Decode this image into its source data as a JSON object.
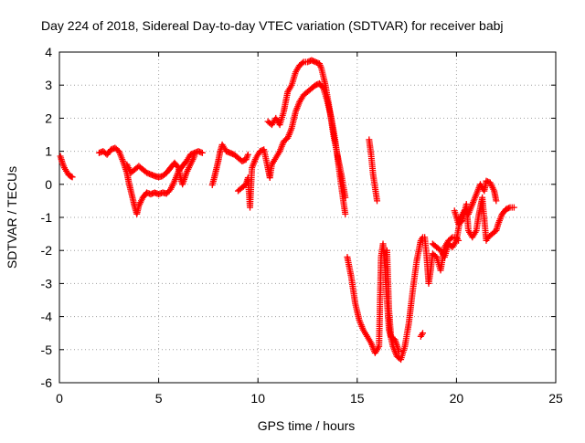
{
  "chart_data": {
    "type": "scatter",
    "title": "Day 224 of 2018, Sidereal Day-to-day VTEC variation (SDTVAR) for receiver babj",
    "xlabel": "GPS time / hours",
    "ylabel": "SDTVAR / TECUs",
    "xlim": [
      0,
      25
    ],
    "ylim": [
      -6,
      4
    ],
    "xticks": [
      "0",
      "5",
      "10",
      "15",
      "20",
      "25"
    ],
    "yticks": [
      "4",
      "3",
      "2",
      "1",
      "0",
      "-1",
      "-2",
      "-3",
      "-4",
      "-5",
      "-6"
    ],
    "grid": true,
    "marker": "plus",
    "color": "#ff0000",
    "series": [
      {
        "name": "SDTVAR",
        "segments": [
          [
            [
              0.05,
              0.85
            ],
            [
              0.15,
              0.65
            ],
            [
              0.25,
              0.5
            ],
            [
              0.35,
              0.4
            ],
            [
              0.45,
              0.3
            ],
            [
              0.55,
              0.25
            ],
            [
              0.65,
              0.22
            ]
          ],
          [
            [
              2.0,
              0.95
            ],
            [
              2.2,
              1.0
            ],
            [
              2.4,
              0.9
            ],
            [
              2.6,
              1.05
            ],
            [
              2.8,
              1.1
            ],
            [
              3.0,
              1.0
            ],
            [
              3.2,
              0.7
            ],
            [
              3.4,
              0.35
            ],
            [
              3.5,
              0.05
            ],
            [
              3.6,
              -0.2
            ],
            [
              3.7,
              -0.45
            ],
            [
              3.8,
              -0.7
            ],
            [
              3.9,
              -0.9
            ],
            [
              4.0,
              -0.65
            ],
            [
              4.2,
              -0.4
            ],
            [
              4.4,
              -0.25
            ],
            [
              4.6,
              -0.3
            ],
            [
              4.8,
              -0.25
            ],
            [
              5.0,
              -0.3
            ],
            [
              5.2,
              -0.25
            ],
            [
              5.4,
              -0.28
            ],
            [
              5.6,
              -0.15
            ],
            [
              5.8,
              0.1
            ],
            [
              6.0,
              0.4
            ],
            [
              6.2,
              0.55
            ],
            [
              6.4,
              0.7
            ],
            [
              6.6,
              0.9
            ],
            [
              6.8,
              0.95
            ],
            [
              7.0,
              1.0
            ],
            [
              7.2,
              0.95
            ]
          ],
          [
            [
              3.4,
              0.6
            ],
            [
              3.6,
              0.35
            ],
            [
              3.8,
              0.45
            ],
            [
              4.0,
              0.55
            ],
            [
              4.2,
              0.45
            ],
            [
              4.4,
              0.35
            ],
            [
              4.6,
              0.3
            ],
            [
              4.8,
              0.25
            ],
            [
              5.0,
              0.22
            ],
            [
              5.2,
              0.25
            ],
            [
              5.4,
              0.35
            ],
            [
              5.6,
              0.5
            ],
            [
              5.8,
              0.65
            ],
            [
              6.0,
              0.5
            ],
            [
              6.1,
              0.2
            ],
            [
              6.2,
              0.0
            ],
            [
              6.4,
              0.35
            ],
            [
              6.6,
              0.6
            ],
            [
              6.8,
              0.85
            ]
          ],
          [
            [
              7.7,
              -0.02
            ],
            [
              7.8,
              0.2
            ],
            [
              7.9,
              0.45
            ],
            [
              8.0,
              0.7
            ],
            [
              8.1,
              1.0
            ],
            [
              8.2,
              1.2
            ],
            [
              8.4,
              1.0
            ],
            [
              8.6,
              0.95
            ],
            [
              8.8,
              0.9
            ],
            [
              9.0,
              0.8
            ],
            [
              9.2,
              0.7
            ],
            [
              9.4,
              0.75
            ],
            [
              9.5,
              0.9
            ]
          ],
          [
            [
              9.0,
              -0.2
            ],
            [
              9.2,
              -0.1
            ],
            [
              9.4,
              0.0
            ],
            [
              9.5,
              0.2
            ],
            [
              9.6,
              -0.7
            ],
            [
              9.7,
              0.5
            ],
            [
              9.9,
              0.8
            ],
            [
              10.1,
              1.0
            ],
            [
              10.3,
              1.05
            ],
            [
              10.5,
              0.5
            ],
            [
              10.6,
              0.2
            ],
            [
              10.7,
              0.6
            ],
            [
              10.9,
              0.8
            ],
            [
              11.1,
              1.0
            ],
            [
              11.3,
              1.3
            ],
            [
              11.5,
              1.4
            ],
            [
              11.7,
              1.7
            ],
            [
              11.9,
              2.2
            ],
            [
              12.1,
              2.5
            ],
            [
              12.3,
              2.7
            ],
            [
              12.5,
              2.8
            ],
            [
              12.7,
              2.9
            ],
            [
              12.9,
              3.0
            ],
            [
              13.1,
              3.05
            ],
            [
              13.3,
              2.9
            ],
            [
              13.5,
              2.5
            ],
            [
              13.7,
              2.0
            ],
            [
              13.9,
              1.3
            ],
            [
              14.1,
              0.4
            ],
            [
              14.3,
              -0.5
            ],
            [
              14.4,
              -0.9
            ]
          ],
          [
            [
              10.5,
              1.9
            ],
            [
              10.7,
              1.8
            ],
            [
              10.9,
              2.0
            ],
            [
              11.1,
              1.8
            ],
            [
              11.3,
              2.2
            ],
            [
              11.5,
              2.8
            ],
            [
              11.7,
              3.0
            ],
            [
              11.9,
              3.4
            ],
            [
              12.1,
              3.6
            ],
            [
              12.3,
              3.7
            ],
            [
              12.5,
              3.7
            ],
            [
              12.7,
              3.75
            ],
            [
              12.9,
              3.7
            ],
            [
              13.1,
              3.65
            ],
            [
              13.2,
              3.5
            ],
            [
              13.4,
              3.0
            ],
            [
              13.6,
              2.3
            ],
            [
              13.8,
              1.5
            ],
            [
              14.0,
              0.9
            ],
            [
              14.2,
              0.3
            ],
            [
              14.4,
              -0.4
            ]
          ],
          [
            [
              14.5,
              -2.2
            ],
            [
              14.7,
              -2.8
            ],
            [
              14.9,
              -3.6
            ],
            [
              15.1,
              -4.1
            ],
            [
              15.3,
              -4.4
            ],
            [
              15.5,
              -4.6
            ],
            [
              15.7,
              -4.8
            ],
            [
              15.9,
              -5.1
            ],
            [
              16.1,
              -4.9
            ],
            [
              16.2,
              -2.2
            ],
            [
              16.3,
              -1.8
            ],
            [
              16.4,
              -2.5
            ],
            [
              16.5,
              -3.5
            ],
            [
              16.6,
              -4.4
            ],
            [
              16.8,
              -4.9
            ],
            [
              17.0,
              -5.2
            ],
            [
              17.2,
              -5.3
            ],
            [
              17.4,
              -4.9
            ],
            [
              17.6,
              -4.2
            ],
            [
              17.8,
              -3.2
            ],
            [
              18.0,
              -2.3
            ],
            [
              18.2,
              -1.7
            ],
            [
              18.3,
              -1.6
            ]
          ],
          [
            [
              15.6,
              1.35
            ],
            [
              15.7,
              0.9
            ],
            [
              15.8,
              0.3
            ],
            [
              15.9,
              -0.1
            ],
            [
              16.0,
              -0.5
            ]
          ],
          [
            [
              16.5,
              -2.0
            ],
            [
              16.6,
              -3.8
            ],
            [
              16.7,
              -4.6
            ],
            [
              16.9,
              -4.7
            ],
            [
              17.1,
              -5.05
            ]
          ],
          [
            [
              18.2,
              -4.6
            ],
            [
              18.3,
              -4.5
            ]
          ],
          [
            [
              18.4,
              -1.6
            ],
            [
              18.5,
              -2.2
            ],
            [
              18.6,
              -3.0
            ],
            [
              18.7,
              -2.6
            ],
            [
              18.8,
              -2.1
            ],
            [
              19.0,
              -2.2
            ],
            [
              19.2,
              -2.6
            ],
            [
              19.4,
              -1.9
            ],
            [
              19.6,
              -1.7
            ],
            [
              19.8,
              -1.6
            ],
            [
              20.0,
              -1.6
            ],
            [
              20.1,
              -1.7
            ]
          ],
          [
            [
              18.8,
              -1.8
            ],
            [
              19.0,
              -1.9
            ],
            [
              19.2,
              -2.0
            ],
            [
              19.4,
              -2.2
            ],
            [
              19.6,
              -1.8
            ],
            [
              19.8,
              -1.9
            ],
            [
              20.0,
              -1.7
            ],
            [
              20.2,
              -1.0
            ],
            [
              20.4,
              -0.8
            ],
            [
              20.6,
              -0.9
            ],
            [
              20.8,
              -0.6
            ],
            [
              21.0,
              -0.3
            ],
            [
              21.2,
              0.0
            ],
            [
              21.4,
              -0.2
            ],
            [
              21.5,
              0.1
            ],
            [
              21.7,
              0.05
            ],
            [
              21.9,
              -0.2
            ],
            [
              22.0,
              -0.5
            ]
          ],
          [
            [
              19.9,
              -0.8
            ],
            [
              20.1,
              -1.2
            ],
            [
              20.3,
              -1.1
            ],
            [
              20.5,
              -0.6
            ],
            [
              20.6,
              -1.4
            ],
            [
              20.8,
              -1.6
            ],
            [
              21.0,
              -1.4
            ],
            [
              21.1,
              -1.0
            ],
            [
              21.3,
              -0.4
            ],
            [
              21.5,
              -1.7
            ],
            [
              21.6,
              -1.6
            ],
            [
              21.8,
              -1.5
            ],
            [
              22.0,
              -1.4
            ],
            [
              22.1,
              -1.2
            ],
            [
              22.3,
              -0.9
            ],
            [
              22.5,
              -0.75
            ],
            [
              22.7,
              -0.7
            ],
            [
              22.9,
              -0.7
            ]
          ]
        ]
      }
    ]
  }
}
